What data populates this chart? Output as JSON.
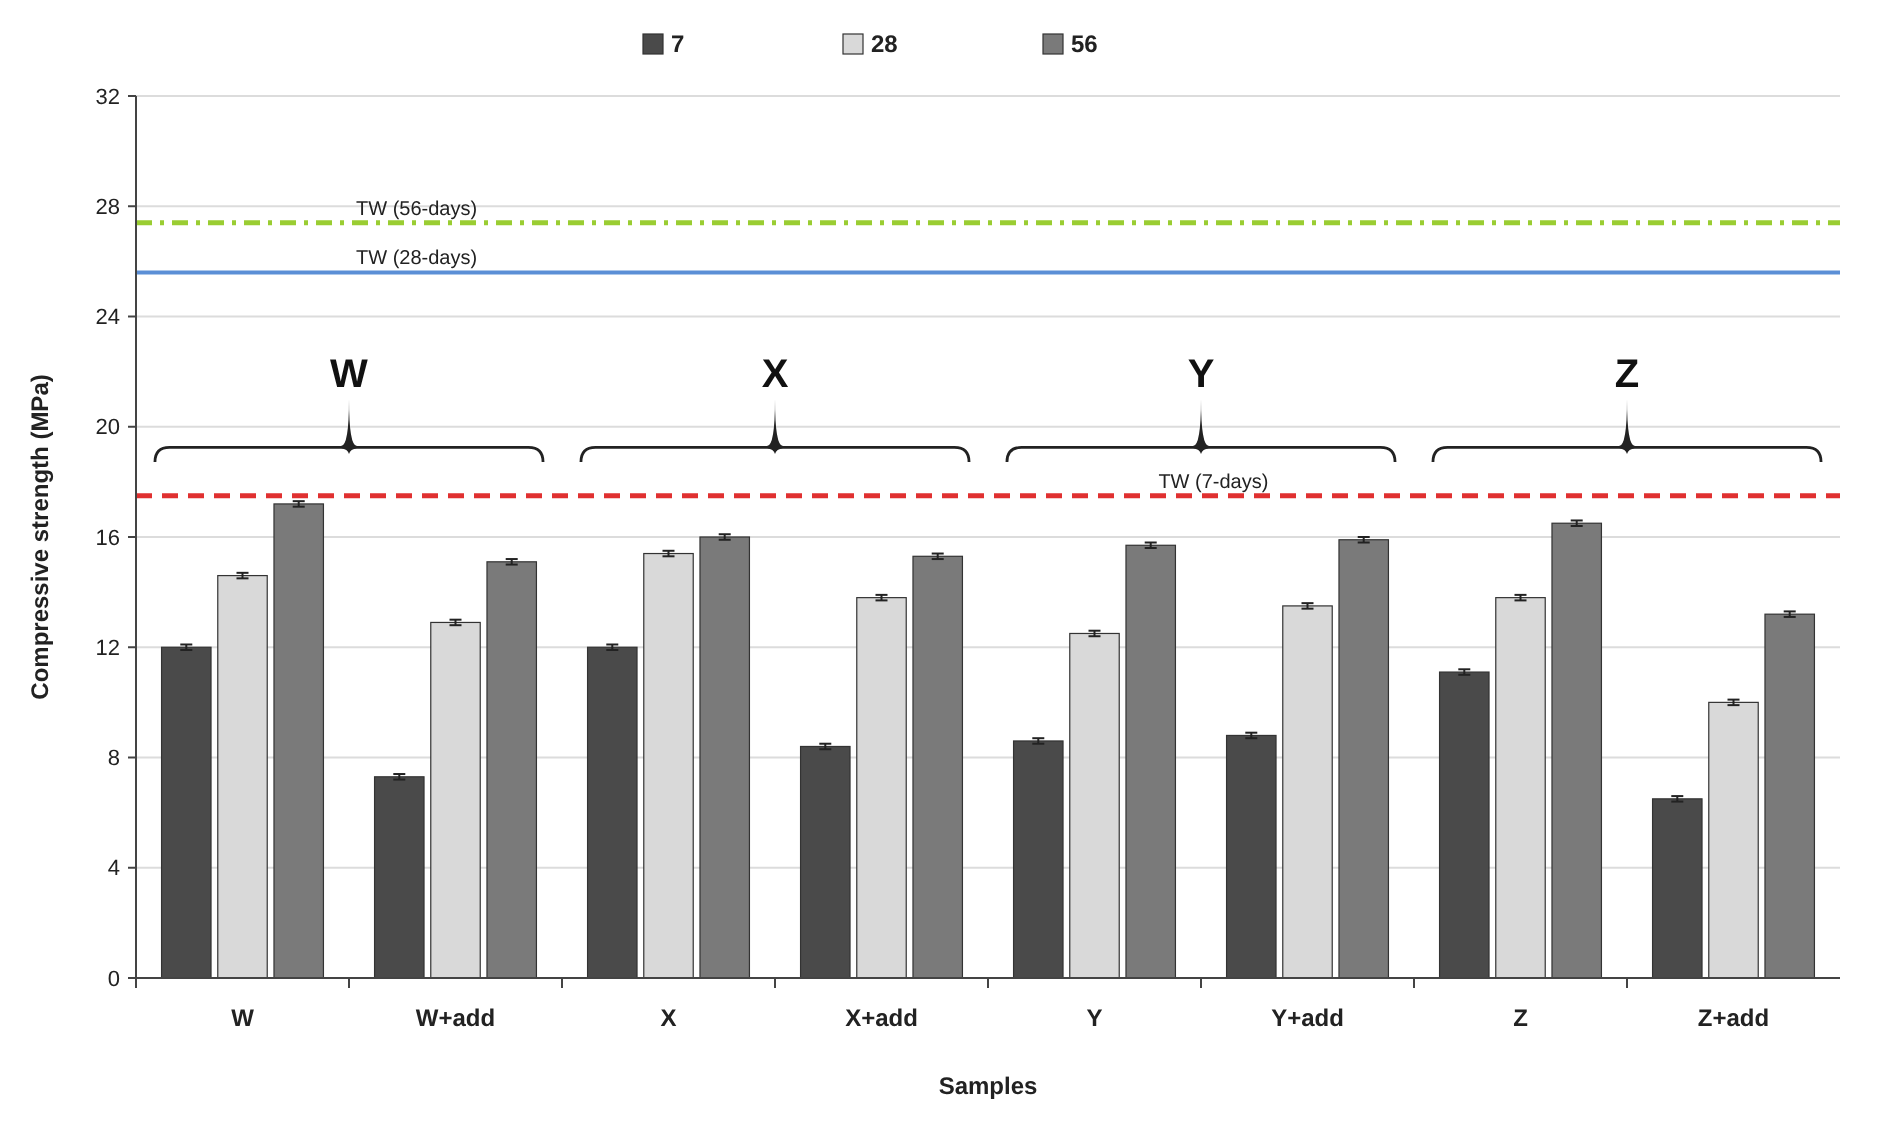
{
  "chart_data": {
    "type": "bar",
    "xlabel": "Samples",
    "ylabel": "Compressive strength (MPa)",
    "categories": [
      "W",
      "W+add",
      "X",
      "X+add",
      "Y",
      "Y+add",
      "Z",
      "Z+add"
    ],
    "series": [
      {
        "name": "7",
        "color": "#4a4a4a",
        "values": [
          12.0,
          7.3,
          12.0,
          8.4,
          8.6,
          8.8,
          11.1,
          6.5
        ],
        "errors": [
          0.1,
          0.1,
          0.1,
          0.1,
          0.1,
          0.1,
          0.1,
          0.1
        ]
      },
      {
        "name": "28",
        "color": "#d9d9d9",
        "values": [
          14.6,
          12.9,
          15.4,
          13.8,
          12.5,
          13.5,
          13.8,
          10.0
        ],
        "errors": [
          0.1,
          0.1,
          0.1,
          0.1,
          0.1,
          0.1,
          0.1,
          0.1
        ]
      },
      {
        "name": "56",
        "color": "#7a7a7a",
        "values": [
          17.2,
          15.1,
          16.0,
          15.3,
          15.7,
          15.9,
          16.5,
          13.2
        ],
        "errors": [
          0.1,
          0.1,
          0.1,
          0.1,
          0.1,
          0.1,
          0.1,
          0.1
        ]
      }
    ],
    "ylim": [
      0,
      32
    ],
    "yticks": [
      0,
      4,
      8,
      12,
      16,
      20,
      24,
      28,
      32
    ],
    "grid": "y",
    "legend": "top",
    "ref_lines": [
      {
        "axis": "y",
        "value": 27.4,
        "label": "TW (56-days)",
        "color": "#9acd32",
        "line_style": "dashdot"
      },
      {
        "axis": "y",
        "value": 25.6,
        "label": "TW (28-days)",
        "color": "#5b8fd6",
        "line_style": "solid"
      },
      {
        "axis": "y",
        "value": 17.5,
        "label": "TW (7-days)",
        "color": "#e03030",
        "line_style": "dashed"
      }
    ],
    "annotations": [
      "W",
      "X",
      "Y",
      "Z"
    ]
  }
}
